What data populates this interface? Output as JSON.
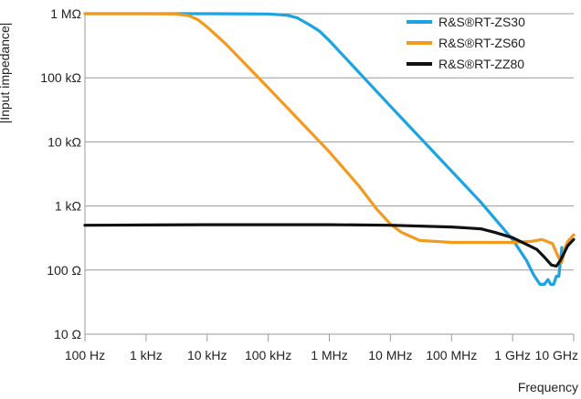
{
  "chart_data": {
    "type": "line",
    "title": "",
    "xlabel": "Frequency",
    "ylabel": "|Input impedance|",
    "x_scale": "log",
    "y_scale": "log",
    "xlim": [
      100,
      10000000000
    ],
    "ylim": [
      10,
      1000000
    ],
    "grid": {
      "x": false,
      "y": true
    },
    "legend_position": "top-right",
    "x_ticks": [
      {
        "value": 100,
        "label": "100 Hz"
      },
      {
        "value": 1000,
        "label": "1 kHz"
      },
      {
        "value": 10000,
        "label": "10 kHz"
      },
      {
        "value": 100000,
        "label": "100 kHz"
      },
      {
        "value": 1000000,
        "label": "1 MHz"
      },
      {
        "value": 10000000,
        "label": "10 MHz"
      },
      {
        "value": 100000000,
        "label": "100 MHz"
      },
      {
        "value": 1000000000,
        "label": "1 GHz"
      },
      {
        "value": 10000000000,
        "label": "10 GHz"
      }
    ],
    "y_ticks": [
      {
        "value": 10,
        "label": "10 Ω"
      },
      {
        "value": 100,
        "label": "100 Ω"
      },
      {
        "value": 1000,
        "label": "1 kΩ"
      },
      {
        "value": 10000,
        "label": "10 kΩ"
      },
      {
        "value": 100000,
        "label": "100 kΩ"
      },
      {
        "value": 1000000,
        "label": "1 MΩ"
      }
    ],
    "series": [
      {
        "name": "R&S®RT-ZS30",
        "color": "#1ba3e2",
        "points": [
          [
            100,
            1000000
          ],
          [
            10000,
            1000000
          ],
          [
            100000,
            990000
          ],
          [
            200000,
            950000
          ],
          [
            300000,
            860000
          ],
          [
            500000,
            650000
          ],
          [
            700000,
            530000
          ],
          [
            1000000,
            380000
          ],
          [
            10000000,
            36000
          ],
          [
            100000000,
            3500
          ],
          [
            300000000,
            1150
          ],
          [
            1000000000,
            300
          ],
          [
            1700000000,
            140
          ],
          [
            2200000000,
            85
          ],
          [
            2800000000,
            60
          ],
          [
            3300000000,
            60
          ],
          [
            3800000000,
            71
          ],
          [
            4200000000,
            60
          ],
          [
            4700000000,
            60
          ],
          [
            5200000000,
            80
          ],
          [
            5700000000,
            80
          ],
          [
            6100000000,
            140
          ],
          [
            6400000000,
            225
          ]
        ]
      },
      {
        "name": "R&S®RT-ZS60",
        "color": "#f39a1e",
        "points": [
          [
            100,
            1000000
          ],
          [
            1000,
            1000000
          ],
          [
            3000,
            990000
          ],
          [
            5000,
            930000
          ],
          [
            7000,
            810000
          ],
          [
            10000,
            620000
          ],
          [
            20000,
            340000
          ],
          [
            100000,
            70000
          ],
          [
            1000000,
            7000
          ],
          [
            3000000,
            2100
          ],
          [
            6000000,
            890
          ],
          [
            10000000,
            520
          ],
          [
            15000000,
            390
          ],
          [
            30000000,
            290
          ],
          [
            100000000,
            270
          ],
          [
            1000000000,
            270
          ],
          [
            2000000000,
            280
          ],
          [
            3000000000,
            300
          ],
          [
            4500000000,
            260
          ],
          [
            5600000000,
            160
          ],
          [
            6300000000,
            130
          ],
          [
            6800000000,
            170
          ],
          [
            7300000000,
            230
          ],
          [
            8000000000,
            280
          ],
          [
            10000000000,
            355
          ]
        ]
      },
      {
        "name": "R&S®RT-ZZ80",
        "color": "#111111",
        "points": [
          [
            100,
            500
          ],
          [
            1000,
            505
          ],
          [
            10000,
            510
          ],
          [
            1000000,
            510
          ],
          [
            10000000,
            500
          ],
          [
            100000000,
            470
          ],
          [
            300000000,
            440
          ],
          [
            500000000,
            390
          ],
          [
            1000000000,
            320
          ],
          [
            2500000000,
            210
          ],
          [
            3300000000,
            160
          ],
          [
            4300000000,
            120
          ],
          [
            5200000000,
            115
          ],
          [
            6000000000,
            140
          ],
          [
            7000000000,
            185
          ],
          [
            8000000000,
            240
          ],
          [
            9000000000,
            270
          ],
          [
            10000000000,
            300
          ]
        ]
      }
    ]
  }
}
